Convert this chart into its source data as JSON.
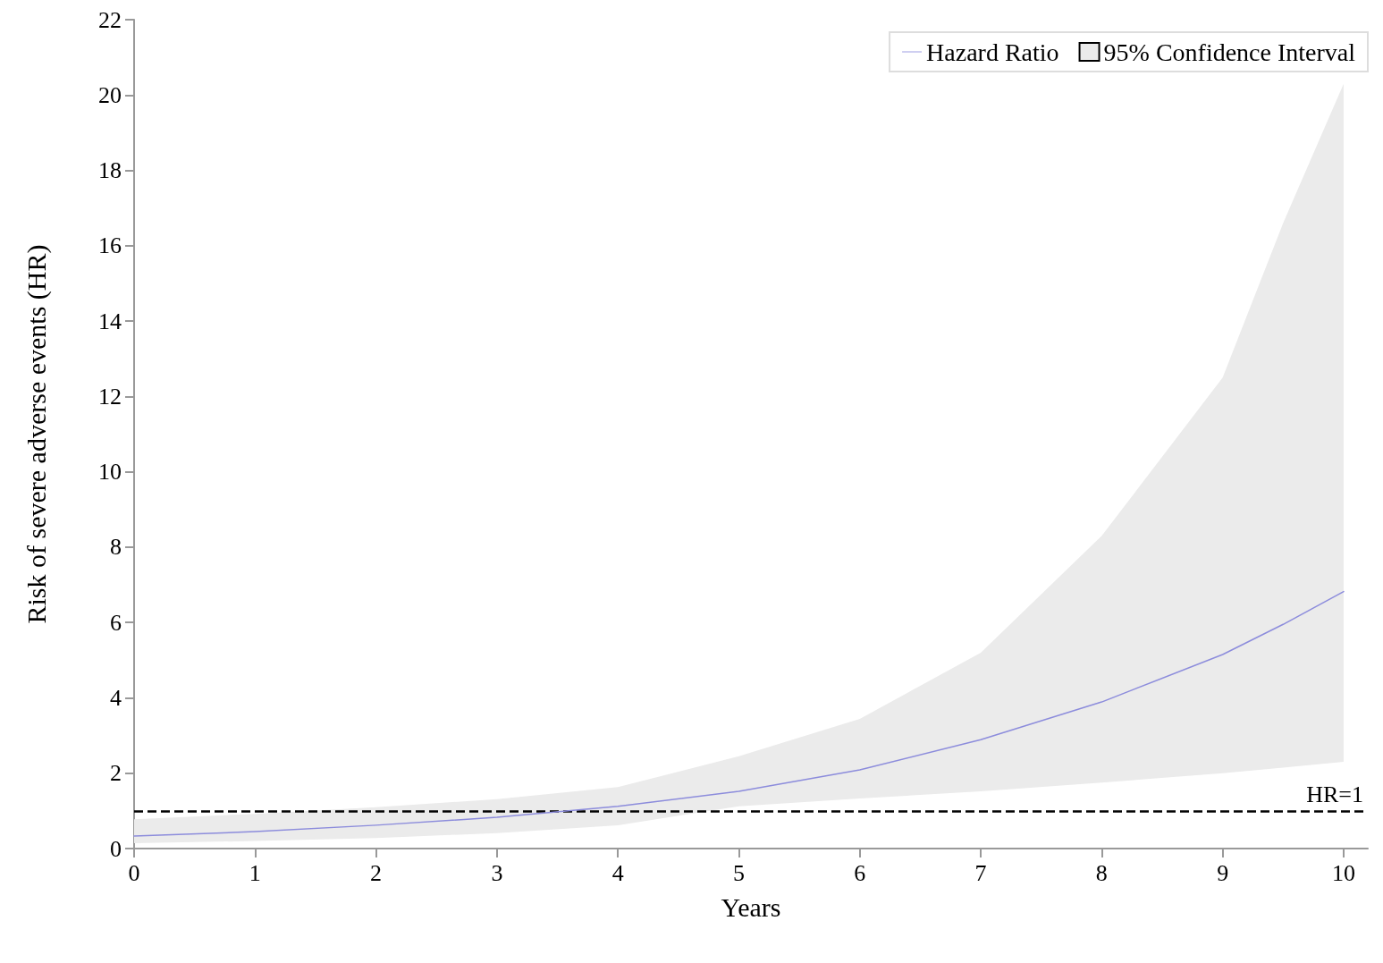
{
  "chart_data": {
    "type": "line",
    "xlabel": "Years",
    "ylabel": "Risk of severe adverse events (HR)",
    "x": [
      0,
      1,
      2,
      3,
      4,
      5,
      6,
      7,
      8,
      9,
      9.5,
      10
    ],
    "series": [
      {
        "name": "Hazard Ratio",
        "type": "line",
        "color": "#8c8cdc",
        "values": [
          0.33,
          0.45,
          0.62,
          0.83,
          1.12,
          1.52,
          2.09,
          2.89,
          3.89,
          5.15,
          5.95,
          6.82
        ],
        "lower": [
          0.14,
          0.2,
          0.28,
          0.41,
          0.62,
          1.12,
          1.33,
          1.52,
          1.75,
          2.0,
          2.15,
          2.3
        ],
        "upper": [
          0.78,
          0.92,
          1.1,
          1.31,
          1.63,
          2.45,
          3.44,
          5.2,
          8.3,
          12.5,
          16.6,
          20.3
        ]
      },
      {
        "name": "95% Confidence Interval",
        "type": "area",
        "color": "#ebebeb",
        "values": [
          null,
          null,
          null,
          null,
          null,
          null,
          null,
          null,
          null,
          null,
          null,
          null
        ]
      }
    ],
    "xlim": [
      0,
      10.2
    ],
    "xticks": [
      0,
      1,
      2,
      3,
      4,
      5,
      6,
      7,
      8,
      9,
      10
    ],
    "ylim": [
      0,
      22
    ],
    "yticks": [
      0,
      2,
      4,
      6,
      8,
      10,
      12,
      14,
      16,
      18,
      20,
      22
    ],
    "ref_lines": [
      {
        "axis": "y",
        "value": 1,
        "label": "HR=1",
        "color": "#000000",
        "line_style": "dashed"
      }
    ],
    "legend": "top right",
    "grid": false,
    "marker": "none"
  }
}
